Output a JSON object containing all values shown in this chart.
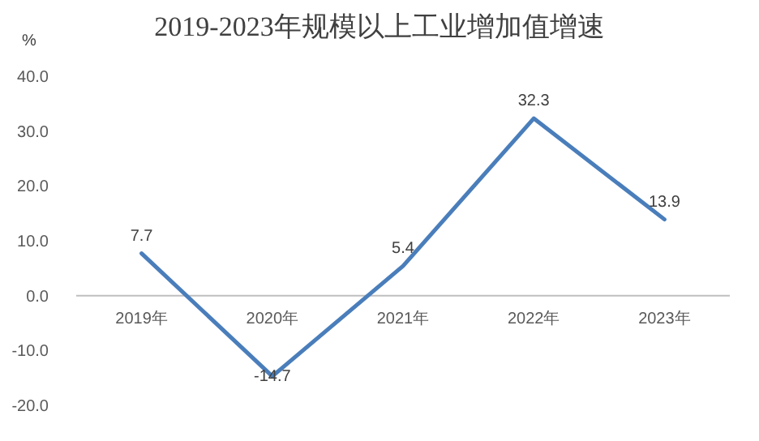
{
  "chart_data": {
    "type": "line",
    "title": "2019-2023年规模以上工业增加值增速",
    "ylabel": "%",
    "categories": [
      "2019年",
      "2020年",
      "2021年",
      "2022年",
      "2023年"
    ],
    "values": [
      7.7,
      -14.7,
      5.4,
      32.3,
      13.9
    ],
    "color": "#4a7ebb",
    "ylim": [
      -20,
      40
    ],
    "yticks": [
      {
        "value": -20,
        "label": "-20.0"
      },
      {
        "value": -10,
        "label": "-10.0"
      },
      {
        "value": 0,
        "label": "0.0"
      },
      {
        "value": 10,
        "label": "10.0"
      },
      {
        "value": 20,
        "label": "20.0"
      },
      {
        "value": 30,
        "label": "30.0"
      },
      {
        "value": 40,
        "label": "40.0"
      }
    ],
    "data_labels": true,
    "grid": false,
    "marker": "none",
    "line_style": "solid"
  }
}
